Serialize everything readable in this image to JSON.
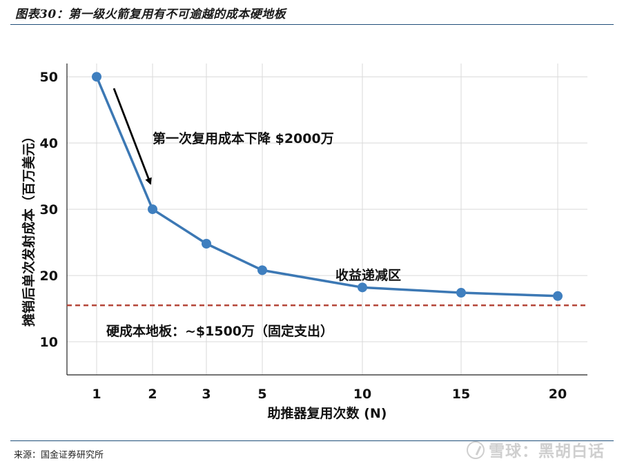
{
  "figure": {
    "title": "图表30：第一级火箭复用有不可逾越的成本硬地板",
    "source": "来源：国金证券研究所",
    "watermark": "雪球：黑胡白话"
  },
  "chart_data": {
    "type": "line",
    "x": [
      1,
      2,
      3,
      5,
      10,
      15,
      20
    ],
    "x_tick_labels": [
      "1",
      "2",
      "3",
      "5",
      "10",
      "15",
      "20"
    ],
    "values": [
      50,
      30,
      24.8,
      20.8,
      18.2,
      17.4,
      16.9
    ],
    "xlabel": "助推器复用次数 (N)",
    "ylabel": "摊销后单次发射成本（百万美元）",
    "y_ticks": [
      10,
      20,
      30,
      40,
      50
    ],
    "ylim": [
      5,
      52
    ],
    "grid": true,
    "floor_line": {
      "value": 15.5,
      "label": "硬成本地板：~$1500万（固定支出）"
    },
    "annotations": [
      "第一次复用成本下降 $2000万",
      "收益递减区"
    ],
    "colors": {
      "line": "#3c78b4",
      "point": "#3f7fbf",
      "floor": "#b5473a",
      "grid": "#d9d9d9",
      "arrow": "#000000"
    }
  }
}
